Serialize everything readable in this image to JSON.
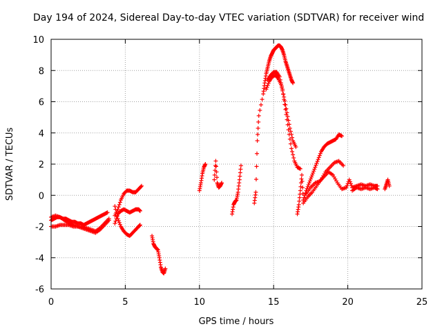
{
  "chart_data": {
    "type": "scatter",
    "title": "Day 194 of 2024, Sidereal Day-to-day VTEC variation (SDTVAR) for receiver wind",
    "xlabel": "GPS time / hours",
    "ylabel": "SDTVAR / TECUs",
    "xlim": [
      0,
      25
    ],
    "ylim": [
      -6,
      10
    ],
    "x_ticks": [
      0,
      5,
      10,
      15,
      20,
      25
    ],
    "y_ticks": [
      -6,
      -4,
      -2,
      0,
      2,
      4,
      6,
      8,
      10
    ],
    "grid": true,
    "marker": "+",
    "marker_color": "#ff0000",
    "series": [
      {
        "name": "SDTVAR",
        "x": [
          0.0,
          0.2,
          0.4,
          0.6,
          0.8,
          1.0,
          1.2,
          1.4,
          1.6,
          1.8,
          2.0,
          2.2,
          2.4,
          2.6,
          2.8,
          3.0,
          3.2,
          3.4,
          3.6,
          3.8,
          0.0,
          0.3,
          0.6,
          0.9,
          1.2,
          1.5,
          1.8,
          2.1,
          2.4,
          2.7,
          3.0,
          3.3,
          3.6,
          3.9,
          0.0,
          0.3,
          0.6,
          0.9,
          1.2,
          1.5,
          1.8,
          2.1,
          2.4,
          2.7,
          3.0,
          3.3,
          3.6,
          3.9,
          4.3,
          4.5,
          4.7,
          4.9,
          5.1,
          5.3,
          5.5,
          5.7,
          5.9,
          6.1,
          4.3,
          4.5,
          4.7,
          4.9,
          5.1,
          5.3,
          5.5,
          5.7,
          5.9,
          6.0,
          4.3,
          4.5,
          4.7,
          4.9,
          5.1,
          5.3,
          5.5,
          5.7,
          5.9,
          6.0,
          6.8,
          6.9,
          7.0,
          7.1,
          7.2,
          7.3,
          7.4,
          7.5,
          7.6,
          7.7,
          10.0,
          10.1,
          10.2,
          10.3,
          10.4,
          11.0,
          11.1,
          11.2,
          11.3,
          11.4,
          11.5,
          12.2,
          12.3,
          12.4,
          12.5,
          12.6,
          12.7,
          12.8,
          13.7,
          13.8,
          13.9,
          14.0,
          14.3,
          14.4,
          14.5,
          14.6,
          14.7,
          14.8,
          14.9,
          15.0,
          15.1,
          15.2,
          15.3,
          15.4,
          15.5,
          15.6,
          15.7,
          15.8,
          15.9,
          16.0,
          16.1,
          16.2,
          16.3,
          14.5,
          14.7,
          14.9,
          15.1,
          15.3,
          15.5,
          15.7,
          15.9,
          16.1,
          16.3,
          16.5,
          14.6,
          14.8,
          15.0,
          15.2,
          15.4,
          15.6,
          15.8,
          16.0,
          16.2,
          16.4,
          16.6,
          16.8,
          16.6,
          16.7,
          16.8,
          16.9,
          17.0,
          17.2,
          17.4,
          17.6,
          17.8,
          18.0,
          18.2,
          18.4,
          18.6,
          18.8,
          19.0,
          19.2,
          19.4,
          19.6,
          17.0,
          17.3,
          17.6,
          17.9,
          18.2,
          18.5,
          18.8,
          19.1,
          19.4,
          19.7,
          17.2,
          17.5,
          17.8,
          18.1,
          18.4,
          18.7,
          19.0,
          19.3,
          19.6,
          19.9,
          20.1,
          20.3,
          20.6,
          20.9,
          21.2,
          21.5,
          21.8,
          22.0,
          20.3,
          20.6,
          20.9,
          21.2,
          21.5,
          21.8,
          22.0,
          22.5,
          22.6,
          22.7,
          22.8
        ],
        "y": [
          -1.6,
          -1.5,
          -1.4,
          -1.4,
          -1.5,
          -1.5,
          -1.6,
          -1.7,
          -1.7,
          -1.8,
          -1.8,
          -1.9,
          -1.8,
          -1.7,
          -1.6,
          -1.5,
          -1.4,
          -1.3,
          -1.2,
          -1.1,
          -2.0,
          -2.0,
          -1.9,
          -1.9,
          -1.9,
          -2.0,
          -2.0,
          -2.0,
          -2.1,
          -2.2,
          -2.3,
          -2.1,
          -1.8,
          -1.5,
          -1.4,
          -1.3,
          -1.4,
          -1.6,
          -1.8,
          -1.9,
          -2.0,
          -2.1,
          -2.2,
          -2.3,
          -2.4,
          -2.2,
          -1.9,
          -1.6,
          -1.3,
          -0.9,
          -0.3,
          0.1,
          0.3,
          0.3,
          0.2,
          0.2,
          0.4,
          0.6,
          -1.8,
          -1.2,
          -1.0,
          -0.9,
          -1.0,
          -1.1,
          -1.0,
          -0.9,
          -0.9,
          -1.0,
          -0.7,
          -1.5,
          -2.0,
          -2.3,
          -2.5,
          -2.6,
          -2.4,
          -2.2,
          -2.0,
          -1.9,
          -2.6,
          -3.1,
          -3.3,
          -3.4,
          -3.5,
          -4.0,
          -4.6,
          -4.9,
          -5.0,
          -4.7,
          0.3,
          0.8,
          1.4,
          1.8,
          2.0,
          1.0,
          2.2,
          0.8,
          0.5,
          0.6,
          0.8,
          -1.2,
          -0.6,
          -0.4,
          -0.3,
          0.2,
          1.0,
          1.9,
          -0.5,
          0.2,
          3.5,
          5.1,
          6.5,
          7.2,
          7.8,
          8.2,
          8.6,
          8.9,
          9.1,
          9.3,
          9.4,
          9.5,
          9.6,
          9.6,
          9.5,
          9.3,
          9.0,
          8.6,
          8.3,
          8.0,
          7.7,
          7.4,
          7.2,
          6.8,
          7.3,
          7.6,
          7.7,
          7.5,
          7.1,
          6.3,
          5.3,
          4.3,
          3.5,
          3.1,
          7.4,
          7.7,
          7.9,
          7.9,
          7.6,
          6.8,
          5.5,
          4.2,
          3.0,
          2.2,
          1.8,
          1.7,
          -1.2,
          -0.6,
          0.3,
          1.3,
          -0.3,
          0.3,
          0.8,
          1.3,
          1.8,
          2.3,
          2.8,
          3.1,
          3.3,
          3.4,
          3.5,
          3.6,
          3.9,
          3.8,
          -0.5,
          -0.1,
          0.2,
          0.6,
          1.0,
          1.5,
          1.8,
          2.1,
          2.2,
          1.9,
          0.1,
          0.5,
          0.8,
          0.9,
          1.2,
          1.5,
          1.3,
          0.8,
          0.4,
          0.5,
          1.0,
          0.5,
          0.6,
          0.7,
          0.6,
          0.7,
          0.6,
          0.6,
          0.3,
          0.5,
          0.4,
          0.5,
          0.4,
          0.5,
          0.4,
          0.4,
          0.7,
          1.0,
          0.6
        ]
      }
    ]
  }
}
